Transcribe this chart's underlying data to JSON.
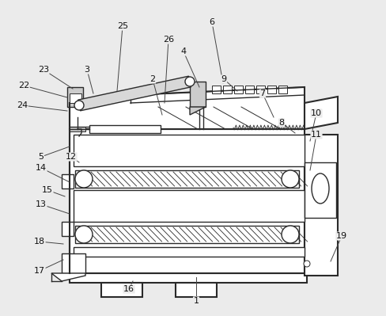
{
  "bg_color": "#ebebeb",
  "line_color": "#2a2a2a",
  "figsize": [
    4.88,
    3.99
  ],
  "dpi": 100,
  "labels_data": [
    [
      "1",
      248,
      380,
      248,
      350
    ],
    [
      "2",
      193,
      100,
      205,
      145
    ],
    [
      "3",
      110,
      88,
      118,
      118
    ],
    [
      "4",
      232,
      65,
      252,
      110
    ],
    [
      "5",
      52,
      198,
      88,
      185
    ],
    [
      "6",
      268,
      28,
      282,
      105
    ],
    [
      "7",
      332,
      118,
      346,
      148
    ],
    [
      "8",
      356,
      155,
      373,
      168
    ],
    [
      "9",
      283,
      100,
      300,
      115
    ],
    [
      "10",
      400,
      143,
      392,
      178
    ],
    [
      "11",
      400,
      170,
      392,
      215
    ],
    [
      "12",
      90,
      198,
      100,
      205
    ],
    [
      "13",
      52,
      258,
      88,
      270
    ],
    [
      "14",
      52,
      212,
      88,
      230
    ],
    [
      "15",
      60,
      240,
      82,
      248
    ],
    [
      "16",
      163,
      365,
      168,
      355
    ],
    [
      "17",
      50,
      342,
      80,
      328
    ],
    [
      "18",
      50,
      305,
      80,
      308
    ],
    [
      "19",
      432,
      298,
      418,
      330
    ],
    [
      "22",
      30,
      108,
      85,
      123
    ],
    [
      "23",
      55,
      88,
      92,
      112
    ],
    [
      "24",
      28,
      133,
      85,
      140
    ],
    [
      "25",
      155,
      33,
      148,
      115
    ],
    [
      "26",
      213,
      50,
      208,
      130
    ]
  ]
}
